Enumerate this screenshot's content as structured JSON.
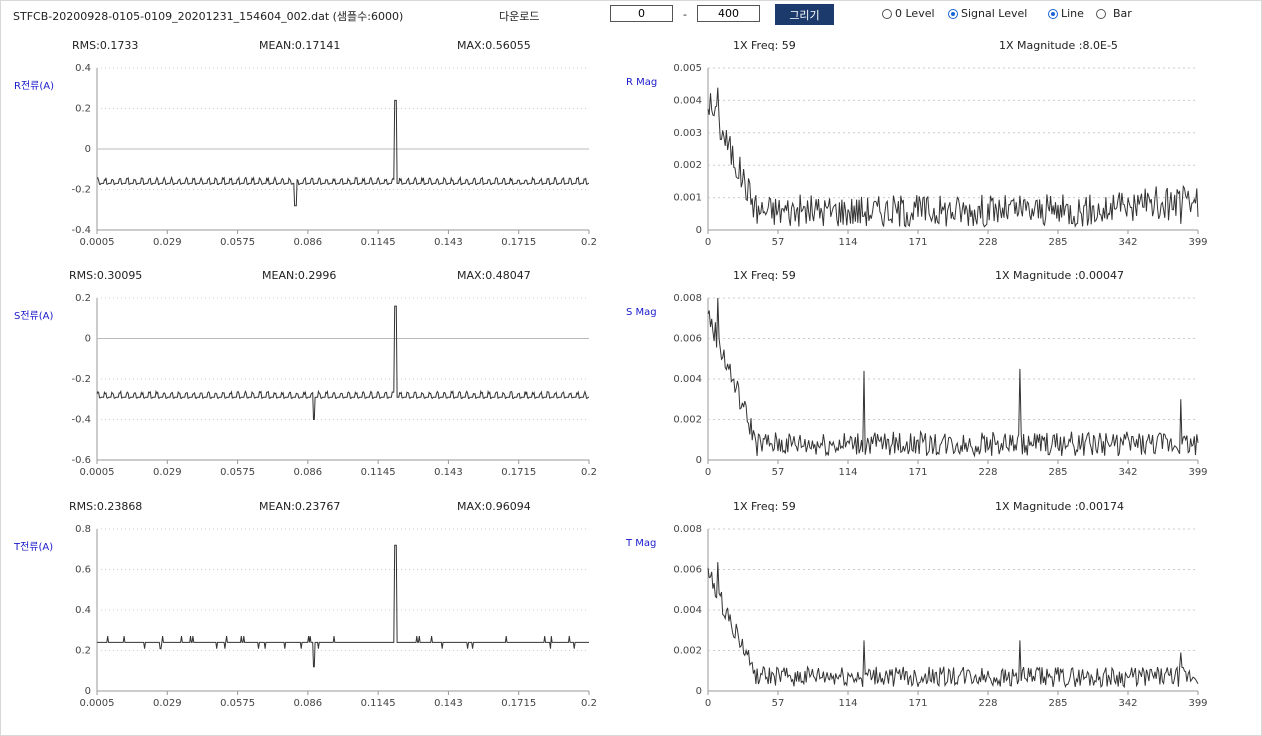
{
  "header": {
    "filename": "STFCB-20200928-0105-0109_20201231_154604_002.dat (샘플수:6000)",
    "download_label": "다운로드",
    "range_start": "0",
    "range_end": "400",
    "range_sep": "-",
    "draw_label": "그리기",
    "level_options": [
      {
        "label": "0 Level",
        "selected": false
      },
      {
        "label": "Signal Level",
        "selected": true
      }
    ],
    "type_options": [
      {
        "label": "Line",
        "selected": true
      },
      {
        "label": "Bar",
        "selected": false
      }
    ]
  },
  "colors": {
    "line": "#333333",
    "grid": "#cccccc",
    "axis_label": "#1a1acd",
    "button": "#1c3a6b"
  },
  "rows": [
    {
      "wave": {
        "label": "R전류(A)",
        "rms": "RMS:0.1733",
        "mean": "MEAN:0.17141",
        "max": "MAX:0.56055",
        "yticks": [
          "0.4",
          "0.2",
          "0",
          "-0.2",
          "-0.4"
        ],
        "ymin": -0.4,
        "ymax": 0.4,
        "zero_line": true
      },
      "spec": {
        "label": "R Mag",
        "freq": "1X Freq: 59",
        "mag": "1X Magnitude :8.0E-5",
        "yticks": [
          "0.005",
          "0.004",
          "0.003",
          "0.002",
          "0.001",
          "0"
        ],
        "ymax": 0.005
      }
    },
    {
      "wave": {
        "label": "S전류(A)",
        "rms": "RMS:0.30095",
        "mean": "MEAN:0.2996",
        "max": "MAX:0.48047",
        "yticks": [
          "0.2",
          "0",
          "-0.2",
          "-0.4",
          "-0.6"
        ],
        "ymin": -0.6,
        "ymax": 0.2,
        "zero_line": true
      },
      "spec": {
        "label": "S Mag",
        "freq": "1X Freq: 59",
        "mag": "1X Magnitude :0.00047",
        "yticks": [
          "0.008",
          "0.006",
          "0.004",
          "0.002",
          "0"
        ],
        "ymax": 0.008
      }
    },
    {
      "wave": {
        "label": "T전류(A)",
        "rms": "RMS:0.23868",
        "mean": "MEAN:0.23767",
        "max": "MAX:0.96094",
        "yticks": [
          "0.8",
          "0.6",
          "0.4",
          "0.2",
          "0"
        ],
        "ymin": 0,
        "ymax": 0.8,
        "zero_line": false
      },
      "spec": {
        "label": "T Mag",
        "freq": "1X Freq: 59",
        "mag": "1X Magnitude :0.00174",
        "yticks": [
          "0.008",
          "0.006",
          "0.004",
          "0.002",
          "0"
        ],
        "ymax": 0.008
      }
    }
  ],
  "wave_xticks": [
    "0.0005",
    "0.029",
    "0.0575",
    "0.086",
    "0.1145",
    "0.143",
    "0.1715",
    "0.2"
  ],
  "spec_xticks": [
    "0",
    "57",
    "114",
    "171",
    "228",
    "285",
    "342",
    "399"
  ],
  "chart_data": [
    {
      "type": "line",
      "ylabel": "R전류(A)",
      "x_range": [
        0.0005,
        0.2
      ],
      "ylim": [
        -0.4,
        0.4
      ],
      "series": [
        {
          "baseline": -0.17,
          "spike_at": 0.1215,
          "spike_peak": 0.24,
          "dip_at": 0.081,
          "dip_low": -0.28
        }
      ]
    },
    {
      "type": "line",
      "ylabel": "S전류(A)",
      "x_range": [
        0.0005,
        0.2
      ],
      "ylim": [
        -0.6,
        0.2
      ],
      "series": [
        {
          "baseline": -0.29,
          "spike_at": 0.1215,
          "spike_peak": 0.16,
          "dip_at": 0.0885,
          "dip_low": -0.4
        }
      ]
    },
    {
      "type": "line",
      "ylabel": "T전류(A)",
      "x_range": [
        0.0005,
        0.2
      ],
      "ylim": [
        0,
        0.8
      ],
      "series": [
        {
          "baseline": 0.24,
          "spike_at": 0.1215,
          "spike_peak": 0.72,
          "dip_at": 0.0885,
          "dip_low": 0.12
        }
      ]
    },
    {
      "type": "line",
      "ylabel": "R Mag",
      "x_range": [
        0,
        399
      ],
      "ylim": [
        0,
        0.005
      ],
      "series": [
        {
          "start_level": 0.004,
          "peak": 0.0048,
          "decay_end": 40,
          "floor": 0.0006,
          "noise": 0.0005,
          "peaks": []
        }
      ]
    },
    {
      "type": "line",
      "ylabel": "S Mag",
      "x_range": [
        0,
        399
      ],
      "ylim": [
        0,
        0.008
      ],
      "series": [
        {
          "start_level": 0.0072,
          "peak": 0.008,
          "decay_end": 40,
          "floor": 0.0008,
          "noise": 0.0006,
          "peaks": [
            [
              127,
              0.0044
            ],
            [
              254,
              0.0045
            ],
            [
              385,
              0.003
            ]
          ]
        }
      ]
    },
    {
      "type": "line",
      "ylabel": "T Mag",
      "x_range": [
        0,
        399
      ],
      "ylim": [
        0,
        0.008
      ],
      "series": [
        {
          "start_level": 0.0058,
          "peak": 0.0062,
          "decay_end": 40,
          "floor": 0.0007,
          "noise": 0.0005,
          "peaks": [
            [
              127,
              0.0025
            ],
            [
              254,
              0.0025
            ],
            [
              385,
              0.0019
            ]
          ]
        }
      ]
    }
  ]
}
